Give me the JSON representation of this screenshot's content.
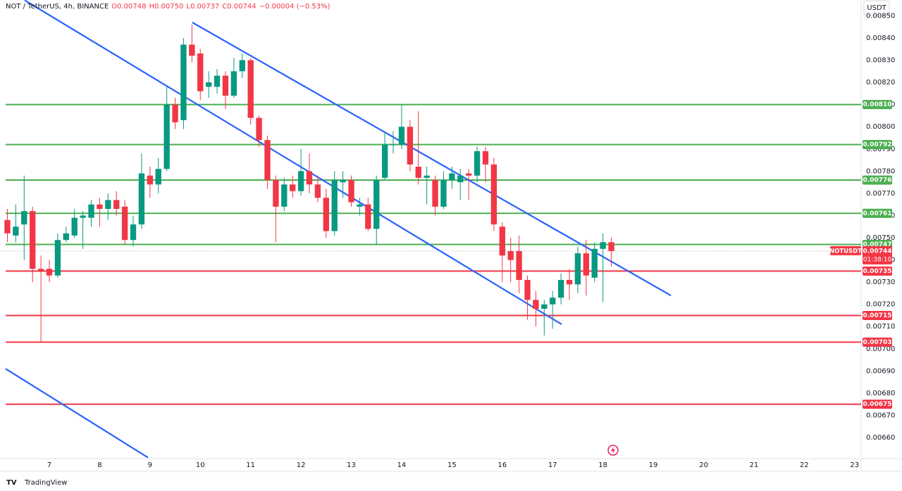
{
  "chart_data": {
    "type": "candlestick",
    "header": "NOT / TetherUS, 4h, BINANCE",
    "legend_values": [
      "O0.00748",
      "H0.00750",
      "L0.00737",
      "C0.00744",
      "−0.00004 (−0.53%)"
    ],
    "currency": "USDT",
    "symbol": "NOTUSDT",
    "countdown": "01:38:10",
    "brand": "TradingView",
    "up_color": "#089981",
    "down_color": "#f23645",
    "grid": false,
    "xlim": [
      6.02,
      23.13
    ],
    "ylim": [
      0.006505,
      0.008571
    ],
    "xticks": [
      7,
      8,
      9,
      10,
      11,
      12,
      13,
      14,
      15,
      16,
      17,
      18,
      19,
      20,
      21,
      22,
      23
    ],
    "yticks": [
      {
        "value": 0.0066,
        "label": "0.00660"
      },
      {
        "value": 0.0067,
        "label": "0.00670"
      },
      {
        "value": 0.0068,
        "label": "0.00680"
      },
      {
        "value": 0.0069,
        "label": "0.00690"
      },
      {
        "value": 0.007,
        "label": "0.00700"
      },
      {
        "value": 0.0071,
        "label": "0.00710"
      },
      {
        "value": 0.0072,
        "label": "0.00720"
      },
      {
        "value": 0.0073,
        "label": "0.00730"
      },
      {
        "value": 0.0074,
        "label": "0.00740"
      },
      {
        "value": 0.0075,
        "label": "0.00750"
      },
      {
        "value": 0.0076,
        "label": "0.00760"
      },
      {
        "value": 0.0077,
        "label": "0.00770"
      },
      {
        "value": 0.0078,
        "label": "0.00780"
      },
      {
        "value": 0.0079,
        "label": "0.00790"
      },
      {
        "value": 0.008,
        "label": "0.00800"
      },
      {
        "value": 0.0081,
        "label": "0.00810"
      },
      {
        "value": 0.0082,
        "label": "0.00820"
      },
      {
        "value": 0.0083,
        "label": "0.00830"
      },
      {
        "value": 0.0084,
        "label": "0.00840"
      },
      {
        "value": 0.0085,
        "label": "0.00850"
      }
    ],
    "x": [
      6.1667,
      6.3333,
      6.5,
      6.6667,
      6.8333,
      7,
      7.1667,
      7.3333,
      7.5,
      7.6667,
      7.8333,
      8,
      8.1667,
      8.3333,
      8.5,
      8.6667,
      8.8333,
      9,
      9.1667,
      9.3333,
      9.5,
      9.6667,
      9.8333,
      10,
      10.1667,
      10.3333,
      10.5,
      10.6667,
      10.8333,
      11,
      11.1667,
      11.3333,
      11.5,
      11.6667,
      11.8333,
      12,
      12.1667,
      12.3333,
      12.5,
      12.6667,
      12.8333,
      13,
      13.1667,
      13.3333,
      13.5,
      13.6667,
      13.8333,
      14,
      14.1667,
      14.3333,
      14.5,
      14.6667,
      14.8333,
      15,
      15.1667,
      15.3333,
      15.5,
      15.6667,
      15.8333,
      16,
      16.1667,
      16.3333,
      16.5,
      16.6667,
      16.8333,
      17,
      17.1667,
      17.3333,
      17.5,
      17.6667,
      17.8333,
      18,
      18.1667
    ],
    "open": [
      0.00758,
      0.00751,
      0.00756,
      0.00762,
      0.00736,
      0.00736,
      0.00733,
      0.00749,
      0.00751,
      0.00759,
      0.00759,
      0.00765,
      0.00763,
      0.00767,
      0.00764,
      0.00749,
      0.00756,
      0.00778,
      0.00774,
      0.00781,
      0.0081,
      0.00803,
      0.00837,
      0.00833,
      0.00818,
      0.00818,
      0.00823,
      0.00814,
      0.00825,
      0.0083,
      0.00804,
      0.00794,
      0.00776,
      0.00764,
      0.00774,
      0.00771,
      0.0078,
      0.00774,
      0.00768,
      0.00753,
      0.00775,
      0.00776,
      0.00764,
      0.00765,
      0.00754,
      0.00777,
      0.00792,
      0.00792,
      0.008,
      0.00782,
      0.00777,
      0.00776,
      0.00764,
      0.00776,
      0.00775,
      0.00779,
      0.00778,
      0.00789,
      0.00783,
      0.00755,
      0.00744,
      0.00744,
      0.00731,
      0.00722,
      0.00718,
      0.0072,
      0.00723,
      0.00731,
      0.00729,
      0.00743,
      0.00732,
      0.00745,
      0.00748
    ],
    "high": [
      0.00763,
      0.00765,
      0.00778,
      0.00764,
      0.00742,
      0.0074,
      0.00752,
      0.00755,
      0.00763,
      0.00762,
      0.00767,
      0.00768,
      0.0077,
      0.00771,
      0.00767,
      0.0076,
      0.00788,
      0.00782,
      0.00786,
      0.00818,
      0.00813,
      0.0084,
      0.00846,
      0.00835,
      0.00825,
      0.00826,
      0.00825,
      0.00831,
      0.00833,
      0.00831,
      0.00805,
      0.00796,
      0.00778,
      0.00777,
      0.00778,
      0.0079,
      0.00788,
      0.00778,
      0.00772,
      0.0078,
      0.0078,
      0.00778,
      0.00768,
      0.00768,
      0.00778,
      0.00798,
      0.00798,
      0.0081,
      0.00803,
      0.00807,
      0.00782,
      0.00778,
      0.0078,
      0.00782,
      0.00781,
      0.00781,
      0.00791,
      0.00791,
      0.00786,
      0.00757,
      0.0075,
      0.00751,
      0.00733,
      0.00726,
      0.00722,
      0.00726,
      0.00734,
      0.00736,
      0.00746,
      0.00749,
      0.00748,
      0.00752,
      0.0075
    ],
    "low": [
      0.00748,
      0.00748,
      0.0074,
      0.0073,
      0.00703,
      0.0073,
      0.00732,
      0.00748,
      0.0075,
      0.00745,
      0.00755,
      0.00755,
      0.00758,
      0.0076,
      0.00747,
      0.00746,
      0.00754,
      0.00768,
      0.0077,
      0.0078,
      0.00799,
      0.00799,
      0.00829,
      0.00812,
      0.00813,
      0.00815,
      0.00808,
      0.00813,
      0.00822,
      0.00801,
      0.00791,
      0.00772,
      0.00748,
      0.00762,
      0.00768,
      0.00769,
      0.0077,
      0.00766,
      0.0075,
      0.00751,
      0.00768,
      0.00764,
      0.0076,
      0.00753,
      0.00747,
      0.00776,
      0.00788,
      0.0079,
      0.0078,
      0.00774,
      0.00765,
      0.0076,
      0.00763,
      0.00772,
      0.00767,
      0.00767,
      0.00775,
      0.00775,
      0.00753,
      0.0073,
      0.0073,
      0.00725,
      0.00713,
      0.0071,
      0.00706,
      0.00709,
      0.0072,
      0.00722,
      0.00725,
      0.00724,
      0.0073,
      0.00721,
      0.00737
    ],
    "close": [
      0.00752,
      0.00755,
      0.00762,
      0.00736,
      0.00735,
      0.00733,
      0.00749,
      0.00752,
      0.00759,
      0.0076,
      0.00765,
      0.00763,
      0.00767,
      0.00763,
      0.00749,
      0.00756,
      0.00779,
      0.00774,
      0.00781,
      0.0081,
      0.00802,
      0.00837,
      0.00832,
      0.00816,
      0.0082,
      0.00823,
      0.00814,
      0.00825,
      0.0083,
      0.00804,
      0.00794,
      0.00776,
      0.00764,
      0.00774,
      0.00771,
      0.0078,
      0.00774,
      0.00768,
      0.00753,
      0.00776,
      0.00776,
      0.00766,
      0.00765,
      0.00754,
      0.00776,
      0.00792,
      0.00792,
      0.008,
      0.00783,
      0.00777,
      0.00778,
      0.00764,
      0.00776,
      0.00779,
      0.00778,
      0.00778,
      0.00789,
      0.00783,
      0.00756,
      0.00742,
      0.0074,
      0.00731,
      0.00722,
      0.00718,
      0.0072,
      0.00723,
      0.00731,
      0.00729,
      0.00743,
      0.00733,
      0.00745,
      0.00748,
      0.00744
    ],
    "levels": [
      {
        "value": 0.0081,
        "label": "0.00810",
        "color": "#4caf50"
      },
      {
        "value": 0.00792,
        "label": "0.00792",
        "color": "#4caf50"
      },
      {
        "value": 0.00776,
        "label": "0.00776",
        "color": "#4caf50"
      },
      {
        "value": 0.00761,
        "label": "0.00761",
        "color": "#4caf50"
      },
      {
        "value": 0.00747,
        "label": "0.00747",
        "color": "#4caf50"
      },
      {
        "value": 0.00735,
        "label": "0.00735",
        "color": "#f23645"
      },
      {
        "value": 0.00715,
        "label": "0.00715",
        "color": "#f23645"
      },
      {
        "value": 0.00703,
        "label": "0.00703",
        "color": "#f23645"
      },
      {
        "value": 0.00675,
        "label": "0.00675",
        "color": "#f23645"
      }
    ],
    "last_price": {
      "value": 0.00744,
      "label": "0.00744"
    },
    "trend_color": "#2962ff",
    "trend_lines": [
      {
        "x": [
          6.51,
          17.18
        ],
        "y": [
          0.00857,
          0.00711
        ]
      },
      {
        "x": [
          9.84,
          19.35
        ],
        "y": [
          0.00847,
          0.00724
        ]
      },
      {
        "x": [
          6.13,
          8.96
        ],
        "y": [
          0.00691,
          0.00651
        ]
      }
    ]
  }
}
